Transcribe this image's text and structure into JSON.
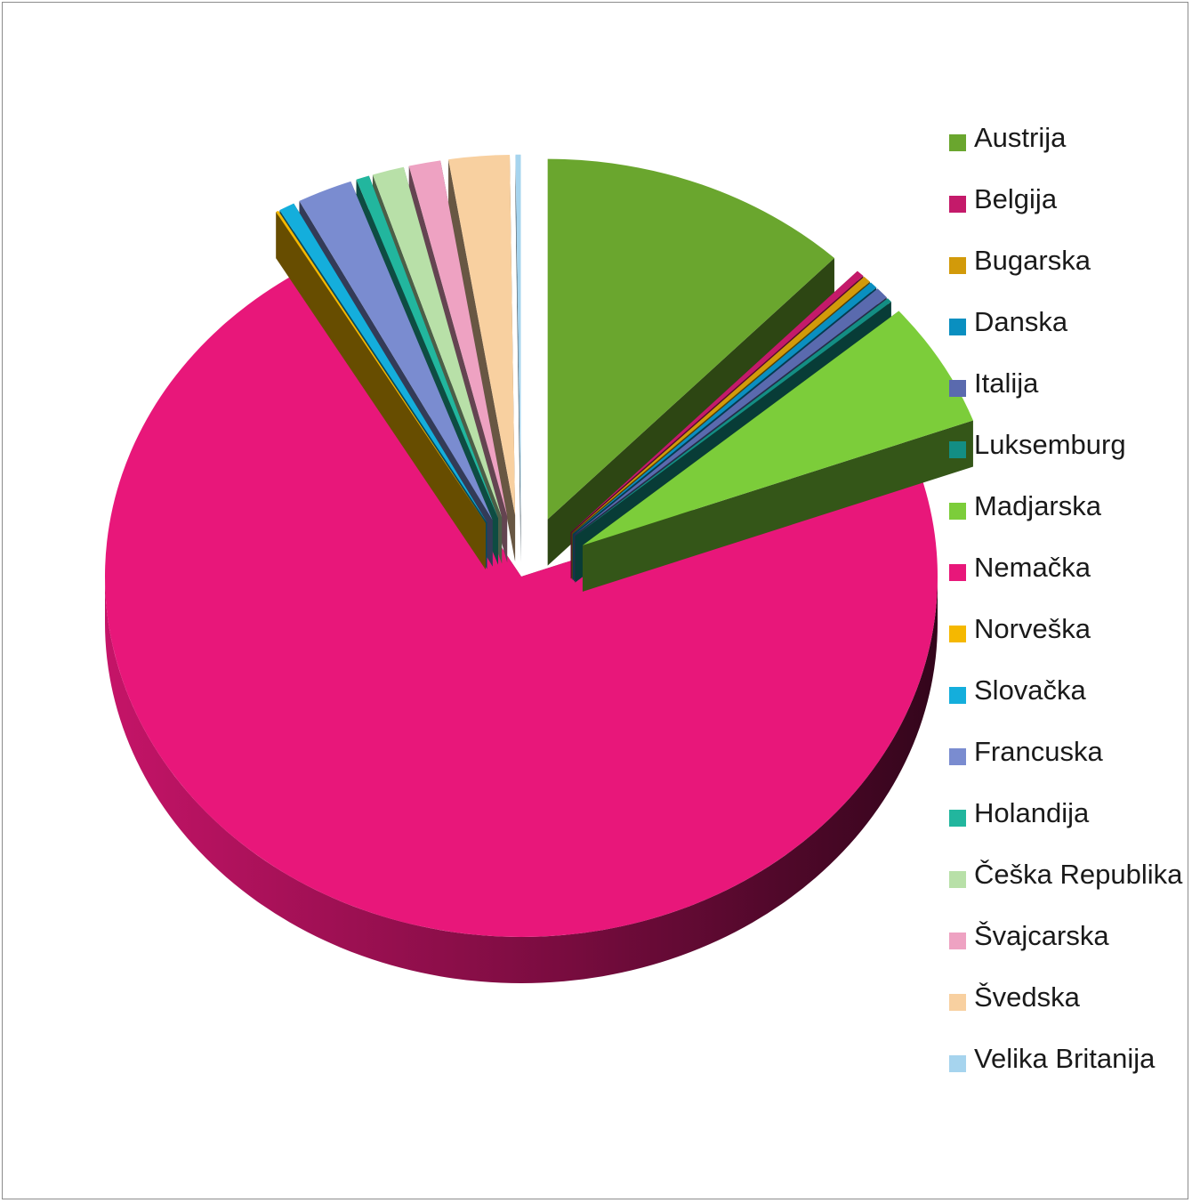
{
  "chart_data": {
    "type": "pie",
    "style": "3d-exploded",
    "title": "",
    "legend_position": "right",
    "categories": [
      "Austrija",
      "Belgija",
      "Bugarska",
      "Danska",
      "Italija",
      "Luksemburg",
      "Madjarska",
      "Nemačka",
      "Norveška",
      "Slovačka",
      "Francuska",
      "Holandija",
      "Češka Republika",
      "Švajcarska",
      "Švedska",
      "Velika Britanija"
    ],
    "values": [
      11.8,
      0.3,
      0.3,
      0.3,
      0.5,
      0.2,
      5.5,
      70.5,
      0.1,
      0.6,
      2.1,
      0.5,
      1.2,
      1.2,
      2.3,
      0.2
    ],
    "colors": [
      "#6aa62e",
      "#c41a6a",
      "#d29a0a",
      "#0a8fc0",
      "#5a6aae",
      "#138e84",
      "#7ccd3a",
      "#e8177a",
      "#f5b800",
      "#14aedc",
      "#7a8cd0",
      "#22b69e",
      "#b8e0a8",
      "#eea2c2",
      "#f8d0a0",
      "#a6d4ee"
    ]
  }
}
